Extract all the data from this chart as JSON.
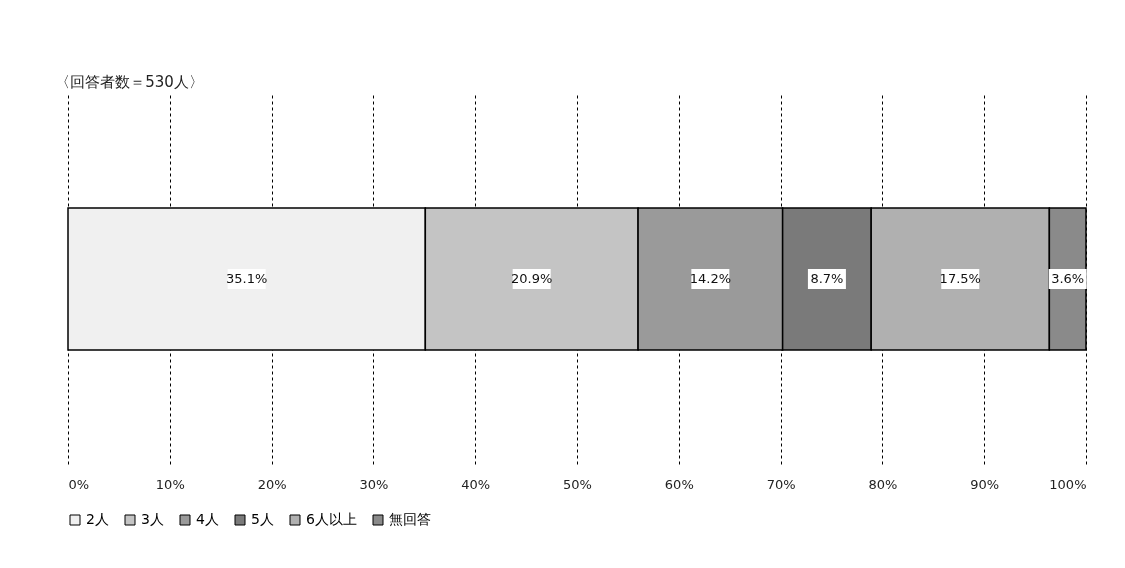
{
  "chart_data": {
    "type": "bar",
    "orientation": "horizontal",
    "stacked": true,
    "title": "〈回答者数＝530人〉",
    "categories": [
      null
    ],
    "series": [
      {
        "name": "2人",
        "color": "#f0f0f0",
        "values": [
          35.1
        ],
        "value_labels": [
          "35.1%"
        ]
      },
      {
        "name": "3人",
        "color": "#c4c4c4",
        "values": [
          20.9
        ],
        "value_labels": [
          "20.9%"
        ]
      },
      {
        "name": "4人",
        "color": "#9a9a9a",
        "values": [
          14.2
        ],
        "value_labels": [
          "14.2%"
        ]
      },
      {
        "name": "5人",
        "color": "#7a7a7a",
        "values": [
          8.7
        ],
        "value_labels": [
          "8.7%"
        ]
      },
      {
        "name": "6人以上",
        "color": "#b0b0b0",
        "values": [
          17.5
        ],
        "value_labels": [
          "17.5%"
        ]
      },
      {
        "name": "無回答",
        "color": "#8a8a8a",
        "values": [
          3.6
        ],
        "value_labels": [
          "3.6%"
        ]
      }
    ],
    "xlim": [
      0,
      100
    ],
    "xticks": [
      {
        "value": 0,
        "label": "0%"
      },
      {
        "value": 10,
        "label": "10%"
      },
      {
        "value": 20,
        "label": "20%"
      },
      {
        "value": 30,
        "label": "30%"
      },
      {
        "value": 40,
        "label": "40%"
      },
      {
        "value": 50,
        "label": "50%"
      },
      {
        "value": 60,
        "label": "60%"
      },
      {
        "value": 70,
        "label": "70%"
      },
      {
        "value": 80,
        "label": "80%"
      },
      {
        "value": 90,
        "label": "90%"
      },
      {
        "value": 100,
        "label": "100%"
      }
    ],
    "grid": "x",
    "legend": "bottom"
  }
}
